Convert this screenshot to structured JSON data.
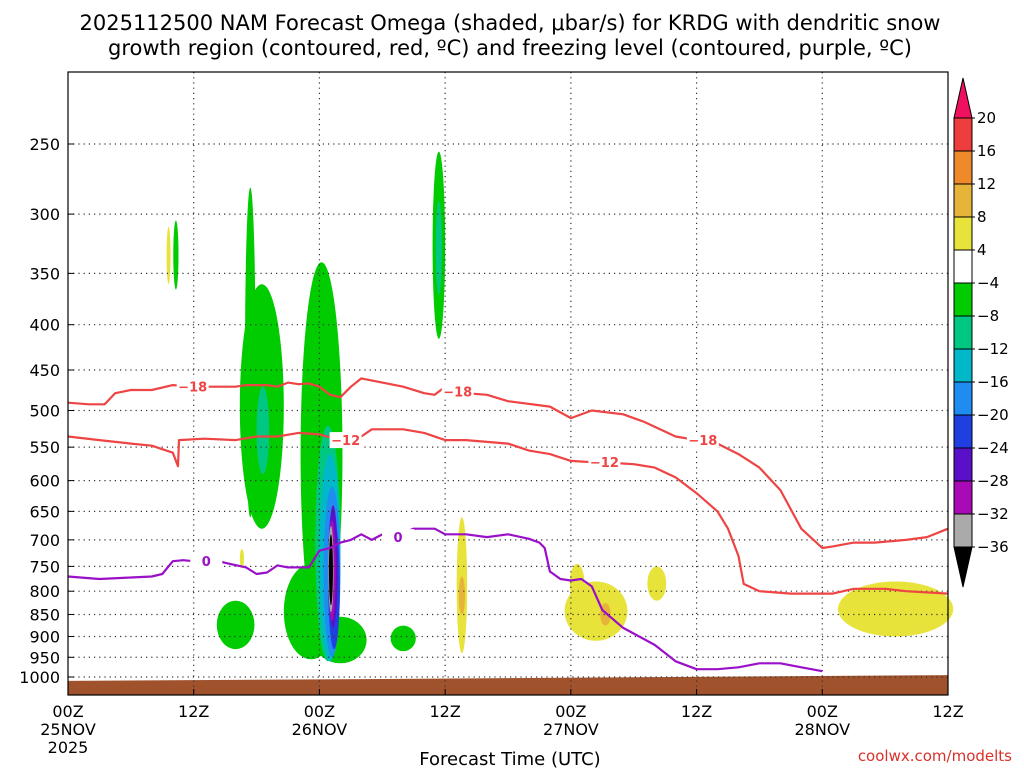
{
  "chart_data": {
    "type": "heatmap",
    "title_lines": [
      "2025112500 NAM Forecast Omega (shaded, μbar/s) for KRDG with dendritic snow",
      "growth region (contoured, red, ºC) and freezing level (contoured, purple, ºC)"
    ],
    "xlabel": "Forecast Time (UTC)",
    "ylabel": "",
    "credit": "coolwx.com/modelts",
    "y_axis": {
      "units": "hPa",
      "range": [
        200,
        1050
      ],
      "ticks": [
        250,
        300,
        350,
        400,
        450,
        500,
        550,
        600,
        650,
        700,
        750,
        800,
        850,
        900,
        950,
        1000
      ]
    },
    "x_axis": {
      "units": "forecast hour",
      "range": [
        0,
        84
      ],
      "ticks": [
        {
          "hour": 0,
          "lines": [
            "00Z",
            "25NOV",
            "2025"
          ]
        },
        {
          "hour": 12,
          "lines": [
            "12Z"
          ]
        },
        {
          "hour": 24,
          "lines": [
            "00Z",
            "26NOV"
          ]
        },
        {
          "hour": 36,
          "lines": [
            "12Z"
          ]
        },
        {
          "hour": 48,
          "lines": [
            "00Z",
            "27NOV"
          ]
        },
        {
          "hour": 60,
          "lines": [
            "12Z"
          ]
        },
        {
          "hour": 72,
          "lines": [
            "00Z",
            "28NOV"
          ]
        },
        {
          "hour": 84,
          "lines": [
            "12Z"
          ]
        }
      ]
    },
    "colorbar": {
      "labels": [
        "20",
        "16",
        "12",
        "8",
        "4",
        "−4",
        "−8",
        "−12",
        "−16",
        "−20",
        "−24",
        "−28",
        "−32",
        "−36"
      ],
      "colors_top_to_bottom": [
        "#f01060",
        "#ee3d3d",
        "#ee8a2a",
        "#e7b43a",
        "#e8e33a",
        "#ffffff",
        "#00cc00",
        "#00c882",
        "#00b8c8",
        "#1e8cf0",
        "#1f3fe0",
        "#5a10c8",
        "#a80ab8",
        "#aaaaaa",
        "#000000"
      ]
    },
    "omega_regions": [
      {
        "value": -8,
        "color": "#00cc00",
        "center_hour": 10.3,
        "center_hpa": 335,
        "hour_halfwidth": 0.25,
        "hpa_halfheight": 30
      },
      {
        "value": -8,
        "color": "#00cc00",
        "center_hour": 17.4,
        "center_hpa": 470,
        "hour_halfwidth": 0.5,
        "hpa_halfheight": 190
      },
      {
        "value": -8,
        "color": "#00cc00",
        "center_hour": 18.5,
        "center_hpa": 520,
        "hour_halfwidth": 2.1,
        "hpa_halfheight": 160
      },
      {
        "value": -8,
        "color": "#00cc00",
        "center_hour": 16.0,
        "center_hpa": 875,
        "hour_halfwidth": 1.8,
        "hpa_halfheight": 55
      },
      {
        "value": -8,
        "color": "#00cc00",
        "center_hour": 24.2,
        "center_hpa": 630,
        "hour_halfwidth": 2.0,
        "hpa_halfheight": 290
      },
      {
        "value": -8,
        "color": "#00cc00",
        "center_hour": 23.2,
        "center_hpa": 850,
        "hour_halfwidth": 2.6,
        "hpa_halfheight": 105
      },
      {
        "value": -8,
        "color": "#00cc00",
        "center_hour": 26.0,
        "center_hpa": 910,
        "hour_halfwidth": 2.5,
        "hpa_halfheight": 55
      },
      {
        "value": -8,
        "color": "#00cc00",
        "center_hour": 32.0,
        "center_hpa": 905,
        "hour_halfwidth": 1.2,
        "hpa_halfheight": 30
      },
      {
        "value": -8,
        "color": "#00cc00",
        "center_hour": 35.4,
        "center_hpa": 335,
        "hour_halfwidth": 0.6,
        "hpa_halfheight": 80
      },
      {
        "value": -12,
        "color": "#00c882",
        "center_hour": 35.4,
        "center_hpa": 330,
        "hour_halfwidth": 0.3,
        "hpa_halfheight": 40
      },
      {
        "value": -12,
        "color": "#00c882",
        "center_hour": 18.6,
        "center_hpa": 530,
        "hour_halfwidth": 0.6,
        "hpa_halfheight": 60
      },
      {
        "value": -12,
        "color": "#00c882",
        "center_hour": 24.8,
        "center_hpa": 740,
        "hour_halfwidth": 1.2,
        "hpa_halfheight": 220
      },
      {
        "value": -16,
        "color": "#00b8c8",
        "center_hour": 25.0,
        "center_hpa": 760,
        "hour_halfwidth": 1.0,
        "hpa_halfheight": 200
      },
      {
        "value": -20,
        "color": "#1e8cf0",
        "center_hour": 25.2,
        "center_hpa": 780,
        "hour_halfwidth": 0.8,
        "hpa_halfheight": 170
      },
      {
        "value": -24,
        "color": "#1f3fe0",
        "center_hour": 25.4,
        "center_hpa": 800,
        "hour_halfwidth": 0.55,
        "hpa_halfheight": 130
      },
      {
        "value": -28,
        "color": "#5a10c8",
        "center_hour": 25.3,
        "center_hpa": 760,
        "hour_halfwidth": 0.45,
        "hpa_halfheight": 120
      },
      {
        "value": -32,
        "color": "#a80ab8",
        "center_hour": 25.2,
        "center_hpa": 765,
        "hour_halfwidth": 0.35,
        "hpa_halfheight": 100
      },
      {
        "value": -36,
        "color": "#aaaaaa",
        "center_hour": 25.1,
        "center_hpa": 760,
        "hour_halfwidth": 0.25,
        "hpa_halfheight": 85
      },
      {
        "value": -40,
        "color": "#000000",
        "center_hour": 25.1,
        "center_hpa": 760,
        "hour_halfwidth": 0.18,
        "hpa_halfheight": 70
      },
      {
        "value": 4,
        "color": "#e8e33a",
        "center_hour": 9.6,
        "center_hpa": 335,
        "hour_halfwidth": 0.15,
        "hpa_halfheight": 25
      },
      {
        "value": 4,
        "color": "#e8e33a",
        "center_hour": 16.6,
        "center_hpa": 735,
        "hour_halfwidth": 0.2,
        "hpa_halfheight": 18
      },
      {
        "value": 4,
        "color": "#e8e33a",
        "center_hour": 37.6,
        "center_hpa": 800,
        "hour_halfwidth": 0.5,
        "hpa_halfheight": 140
      },
      {
        "value": 8,
        "color": "#e7b43a",
        "center_hour": 37.6,
        "center_hpa": 810,
        "hour_halfwidth": 0.3,
        "hpa_halfheight": 40
      },
      {
        "value": 4,
        "color": "#e8e33a",
        "center_hour": 50.4,
        "center_hpa": 845,
        "hour_halfwidth": 3.0,
        "hpa_halfheight": 65
      },
      {
        "value": 4,
        "color": "#e8e33a",
        "center_hour": 48.6,
        "center_hpa": 785,
        "hour_halfwidth": 0.7,
        "hpa_halfheight": 40
      },
      {
        "value": 8,
        "color": "#e7b43a",
        "center_hour": 51.3,
        "center_hpa": 850,
        "hour_halfwidth": 0.5,
        "hpa_halfheight": 25
      },
      {
        "value": 4,
        "color": "#e8e33a",
        "center_hour": 56.2,
        "center_hpa": 785,
        "hour_halfwidth": 0.9,
        "hpa_halfheight": 35
      },
      {
        "value": 4,
        "color": "#e8e33a",
        "center_hour": 79.0,
        "center_hpa": 840,
        "hour_halfwidth": 5.5,
        "hpa_halfheight": 60
      }
    ],
    "contours": [
      {
        "name": "dgz-minus-18",
        "label": "−18",
        "color": "#ee4444",
        "points": [
          [
            0,
            490
          ],
          [
            2,
            492
          ],
          [
            3.5,
            492
          ],
          [
            4.5,
            478
          ],
          [
            6,
            474
          ],
          [
            8,
            474
          ],
          [
            10,
            468
          ],
          [
            12,
            470
          ],
          [
            14,
            470
          ],
          [
            16,
            470
          ],
          [
            17,
            468
          ],
          [
            19,
            468
          ],
          [
            20,
            470
          ],
          [
            21,
            465
          ],
          [
            22,
            467
          ],
          [
            23,
            466
          ],
          [
            24,
            470
          ],
          [
            25,
            480
          ],
          [
            26,
            483
          ],
          [
            27,
            470
          ],
          [
            28,
            460
          ],
          [
            30,
            465
          ],
          [
            32,
            470
          ],
          [
            34,
            478
          ],
          [
            35,
            480
          ],
          [
            36,
            470
          ],
          [
            38,
            478
          ],
          [
            40,
            480
          ],
          [
            42,
            488
          ],
          [
            46,
            495
          ],
          [
            48,
            510
          ],
          [
            50,
            500
          ],
          [
            53,
            505
          ],
          [
            55,
            515
          ],
          [
            58,
            535
          ],
          [
            60,
            540
          ],
          [
            62,
            545
          ],
          [
            64,
            560
          ],
          [
            66,
            580
          ],
          [
            68,
            615
          ],
          [
            70,
            680
          ],
          [
            72,
            715
          ],
          [
            73,
            712
          ],
          [
            75,
            705
          ],
          [
            77,
            705
          ],
          [
            80,
            700
          ],
          [
            82,
            695
          ],
          [
            84,
            680
          ]
        ],
        "label_positions": [
          [
            11.9,
            470
          ],
          [
            37.2,
            476
          ],
          [
            60.6,
            540
          ]
        ]
      },
      {
        "name": "dgz-minus-12",
        "label": "−12",
        "color": "#ee4444",
        "points": [
          [
            0,
            535
          ],
          [
            3,
            540
          ],
          [
            6,
            545
          ],
          [
            8,
            548
          ],
          [
            10,
            558
          ],
          [
            10.5,
            578
          ],
          [
            10.6,
            540
          ],
          [
            13,
            538
          ],
          [
            16,
            540
          ],
          [
            18,
            535
          ],
          [
            20,
            535
          ],
          [
            22,
            530
          ],
          [
            24,
            532
          ],
          [
            26,
            540
          ],
          [
            28,
            535
          ],
          [
            29,
            525
          ],
          [
            32,
            525
          ],
          [
            34,
            530
          ],
          [
            36,
            540
          ],
          [
            38,
            540
          ],
          [
            42,
            545
          ],
          [
            44,
            555
          ],
          [
            46,
            560
          ],
          [
            48,
            570
          ],
          [
            50,
            572
          ],
          [
            52,
            573
          ],
          [
            54,
            575
          ],
          [
            56,
            580
          ],
          [
            58,
            595
          ],
          [
            60,
            620
          ],
          [
            62,
            650
          ],
          [
            63,
            680
          ],
          [
            64,
            730
          ],
          [
            64.5,
            785
          ],
          [
            66,
            800
          ],
          [
            69,
            805
          ],
          [
            73,
            805
          ],
          [
            75,
            795
          ],
          [
            78,
            795
          ],
          [
            80,
            800
          ],
          [
            84,
            805
          ]
        ],
        "label_positions": [
          [
            26.5,
            540
          ],
          [
            51.2,
            572
          ]
        ]
      },
      {
        "name": "freezing-level-0",
        "label": "0",
        "color": "#9a10c8",
        "points": [
          [
            0,
            770
          ],
          [
            3,
            775
          ],
          [
            6,
            772
          ],
          [
            8,
            770
          ],
          [
            9,
            765
          ],
          [
            10,
            740
          ],
          [
            11,
            738
          ],
          [
            12,
            740
          ],
          [
            13,
            740
          ],
          [
            14,
            738
          ],
          [
            15,
            743
          ],
          [
            17,
            752
          ],
          [
            18,
            765
          ],
          [
            19,
            762
          ],
          [
            20,
            748
          ],
          [
            21,
            752
          ],
          [
            23,
            752
          ],
          [
            24,
            720
          ],
          [
            25,
            715
          ],
          [
            26,
            705
          ],
          [
            27,
            700
          ],
          [
            28,
            690
          ],
          [
            29,
            700
          ],
          [
            30,
            690
          ],
          [
            31,
            695
          ],
          [
            33,
            680
          ],
          [
            35,
            680
          ],
          [
            36,
            690
          ],
          [
            38,
            690
          ],
          [
            40,
            695
          ],
          [
            42,
            690
          ],
          [
            44,
            698
          ],
          [
            45,
            705
          ],
          [
            45.5,
            715
          ],
          [
            46,
            760
          ],
          [
            47,
            775
          ],
          [
            48,
            778
          ],
          [
            49,
            775
          ],
          [
            50,
            790
          ],
          [
            51,
            840
          ],
          [
            53,
            880
          ],
          [
            56,
            920
          ],
          [
            58,
            960
          ],
          [
            60,
            980
          ],
          [
            62,
            980
          ],
          [
            64,
            975
          ],
          [
            66,
            965
          ],
          [
            68,
            965
          ],
          [
            70,
            975
          ],
          [
            72,
            985
          ]
        ],
        "label_positions": [
          [
            13.2,
            740
          ],
          [
            31.5,
            695
          ]
        ]
      }
    ],
    "terrain": {
      "color": "#a0522d",
      "surface_hpa_start": 1010,
      "surface_hpa_end": 995,
      "bottom_hpa": 1050
    }
  }
}
